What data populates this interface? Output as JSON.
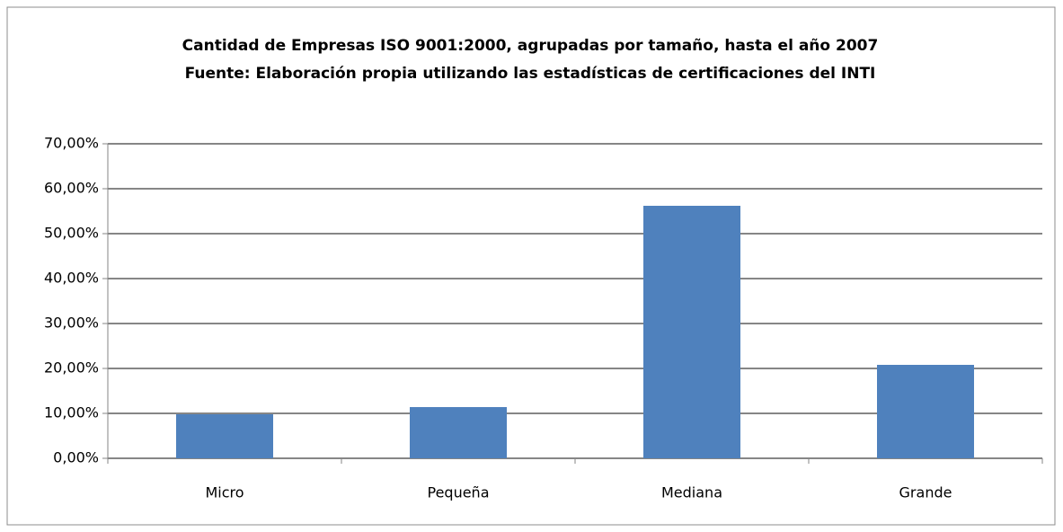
{
  "chart_data": {
    "type": "bar",
    "title": "Cantidad de Empresas ISO 9001:2000, agrupadas por tamaño, hasta el año 2007",
    "subtitle": "Fuente: Elaboración propia utilizando las estadísticas de certificaciones del INTI",
    "categories": [
      "Micro",
      "Pequeña",
      "Mediana",
      "Grande"
    ],
    "values": [
      9.8,
      11.4,
      56.2,
      20.8
    ],
    "color": "#4f81bd",
    "ylim": [
      0,
      70
    ],
    "yticks": [
      {
        "value": 0,
        "label": "0,00%"
      },
      {
        "value": 10,
        "label": "10,00%"
      },
      {
        "value": 20,
        "label": "20,00%"
      },
      {
        "value": 30,
        "label": "30,00%"
      },
      {
        "value": 40,
        "label": "40,00%"
      },
      {
        "value": 50,
        "label": "50,00%"
      },
      {
        "value": 60,
        "label": "60,00%"
      },
      {
        "value": 70,
        "label": "70,00%"
      }
    ],
    "grid": true
  }
}
